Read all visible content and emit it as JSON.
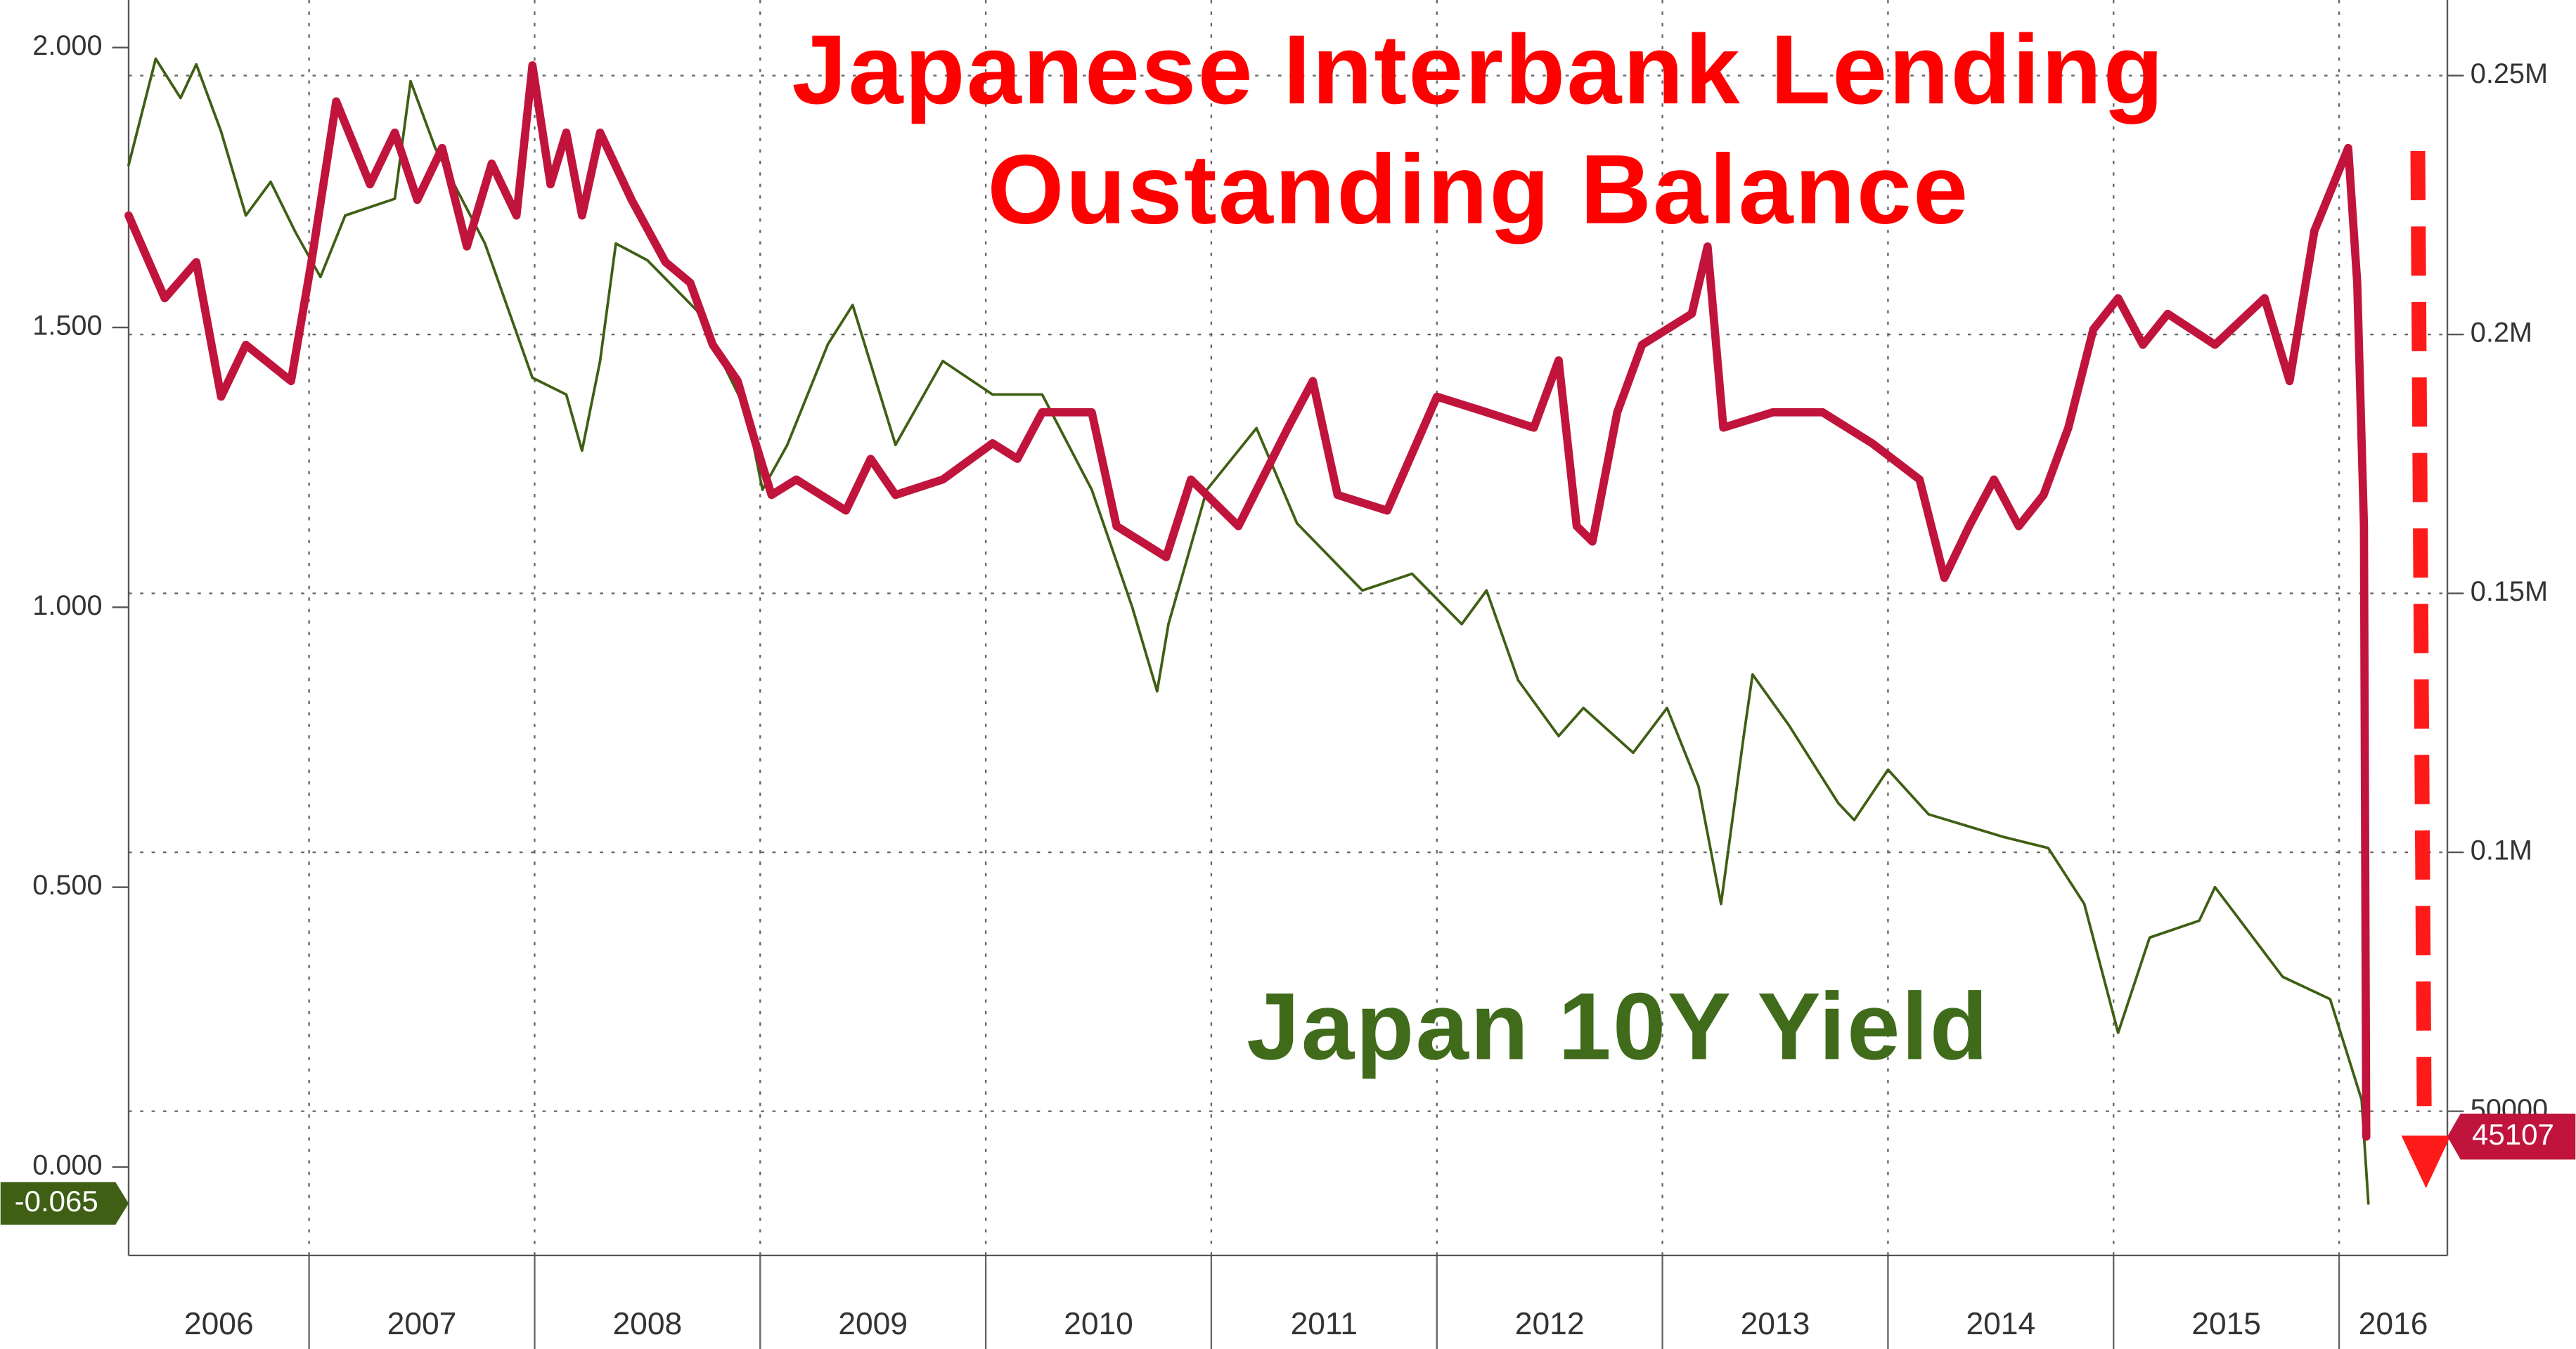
{
  "chart_data": {
    "type": "line",
    "xlim": [
      2006.2,
      2016.48
    ],
    "xticks": [
      2006,
      2007,
      2008,
      2009,
      2010,
      2011,
      2012,
      2013,
      2014,
      2015,
      2016
    ],
    "ylim": [
      -0.158,
      2.085
    ],
    "yticks": [
      {
        "value": 0,
        "label": "0.000"
      },
      {
        "value": 0.5,
        "label": "0.500"
      },
      {
        "value": 1,
        "label": "1.000"
      },
      {
        "value": 1.5,
        "label": "1.500"
      },
      {
        "value": 2,
        "label": "2.000"
      }
    ],
    "y2lim": [
      22150,
      264600
    ],
    "y2ticks": [
      50000,
      {
        "value": 100000,
        "label": "0.1M"
      },
      {
        "value": 150000,
        "label": "0.15M"
      },
      {
        "value": 200000,
        "label": "0.2M"
      },
      {
        "value": 250000,
        "label": "0.25M"
      }
    ],
    "grid": true,
    "series": [
      {
        "name": "Japan 10Y Yield",
        "color": "#3f5f14",
        "axis": "y",
        "x": [
          2006.2,
          2006.32,
          2006.43,
          2006.5,
          2006.61,
          2006.72,
          2006.83,
          2006.94,
          2007.05,
          2007.16,
          2007.38,
          2007.45,
          2007.56,
          2007.78,
          2007.99,
          2008.14,
          2008.21,
          2008.29,
          2008.36,
          2008.5,
          2008.72,
          2008.94,
          2009.01,
          2009.12,
          2009.3,
          2009.41,
          2009.6,
          2009.81,
          2010.03,
          2010.25,
          2010.47,
          2010.65,
          2010.76,
          2010.81,
          2010.98,
          2011.2,
          2011.38,
          2011.67,
          2011.89,
          2012.11,
          2012.22,
          2012.36,
          2012.54,
          2012.65,
          2012.87,
          2013.02,
          2013.16,
          2013.26,
          2013.36,
          2013.4,
          2013.56,
          2013.78,
          2013.85,
          2014.0,
          2014.18,
          2014.51,
          2014.71,
          2014.87,
          2015.02,
          2015.16,
          2015.38,
          2015.45,
          2015.75,
          2015.96,
          2016.1,
          2016.13
        ],
        "values": [
          1.79,
          1.98,
          1.91,
          1.97,
          1.85,
          1.7,
          1.76,
          1.67,
          1.59,
          1.7,
          1.73,
          1.94,
          1.82,
          1.65,
          1.41,
          1.38,
          1.28,
          1.44,
          1.65,
          1.62,
          1.53,
          1.35,
          1.21,
          1.29,
          1.47,
          1.54,
          1.29,
          1.44,
          1.38,
          1.38,
          1.21,
          1.0,
          0.85,
          0.97,
          1.21,
          1.32,
          1.15,
          1.03,
          1.06,
          0.97,
          1.03,
          0.87,
          0.77,
          0.82,
          0.74,
          0.82,
          0.68,
          0.47,
          0.77,
          0.88,
          0.79,
          0.65,
          0.62,
          0.71,
          0.63,
          0.59,
          0.57,
          0.47,
          0.24,
          0.41,
          0.44,
          0.5,
          0.34,
          0.3,
          0.12,
          -0.065
        ]
      },
      {
        "name": "Japanese Interbank Lending Oustanding Balance",
        "color": "#c0143c",
        "axis": "y2",
        "x": [
          2006.2,
          2006.36,
          2006.5,
          2006.61,
          2006.72,
          2006.92,
          2007.01,
          2007.12,
          2007.27,
          2007.38,
          2007.48,
          2007.59,
          2007.7,
          2007.81,
          2007.92,
          2007.99,
          2008.07,
          2008.14,
          2008.21,
          2008.29,
          2008.43,
          2008.58,
          2008.69,
          2008.79,
          2008.9,
          2008.98,
          2009.05,
          2009.16,
          2009.38,
          2009.49,
          2009.6,
          2009.81,
          2010.03,
          2010.14,
          2010.25,
          2010.47,
          2010.58,
          2010.69,
          2010.8,
          2010.91,
          2011.12,
          2011.34,
          2011.45,
          2011.56,
          2011.78,
          2012.0,
          2012.22,
          2012.43,
          2012.54,
          2012.62,
          2012.69,
          2012.8,
          2012.91,
          2013.13,
          2013.2,
          2013.27,
          2013.49,
          2013.71,
          2013.93,
          2014.14,
          2014.25,
          2014.36,
          2014.47,
          2014.58,
          2014.69,
          2014.8,
          2014.91,
          2015.02,
          2015.13,
          2015.24,
          2015.45,
          2015.67,
          2015.78,
          2015.89,
          2016.04,
          2016.08,
          2016.11,
          2016.12
        ],
        "values": [
          223000,
          207000,
          214000,
          188000,
          198000,
          191000,
          214000,
          245000,
          229000,
          239000,
          226000,
          236000,
          217000,
          233000,
          223000,
          252000,
          229000,
          239000,
          223000,
          239000,
          226000,
          214000,
          210000,
          198000,
          191000,
          179000,
          169000,
          172000,
          166000,
          176000,
          169000,
          172000,
          179000,
          176000,
          185000,
          185000,
          163000,
          160000,
          157000,
          172000,
          163000,
          182000,
          191000,
          169000,
          166000,
          188000,
          185000,
          182000,
          195000,
          163000,
          160000,
          185000,
          198000,
          204000,
          217000,
          182000,
          185000,
          185000,
          179000,
          172000,
          153000,
          163000,
          172000,
          163000,
          169000,
          182000,
          201000,
          207000,
          198000,
          204000,
          198000,
          207000,
          191000,
          220000,
          236000,
          210000,
          163000,
          45107
        ]
      }
    ]
  }
}
